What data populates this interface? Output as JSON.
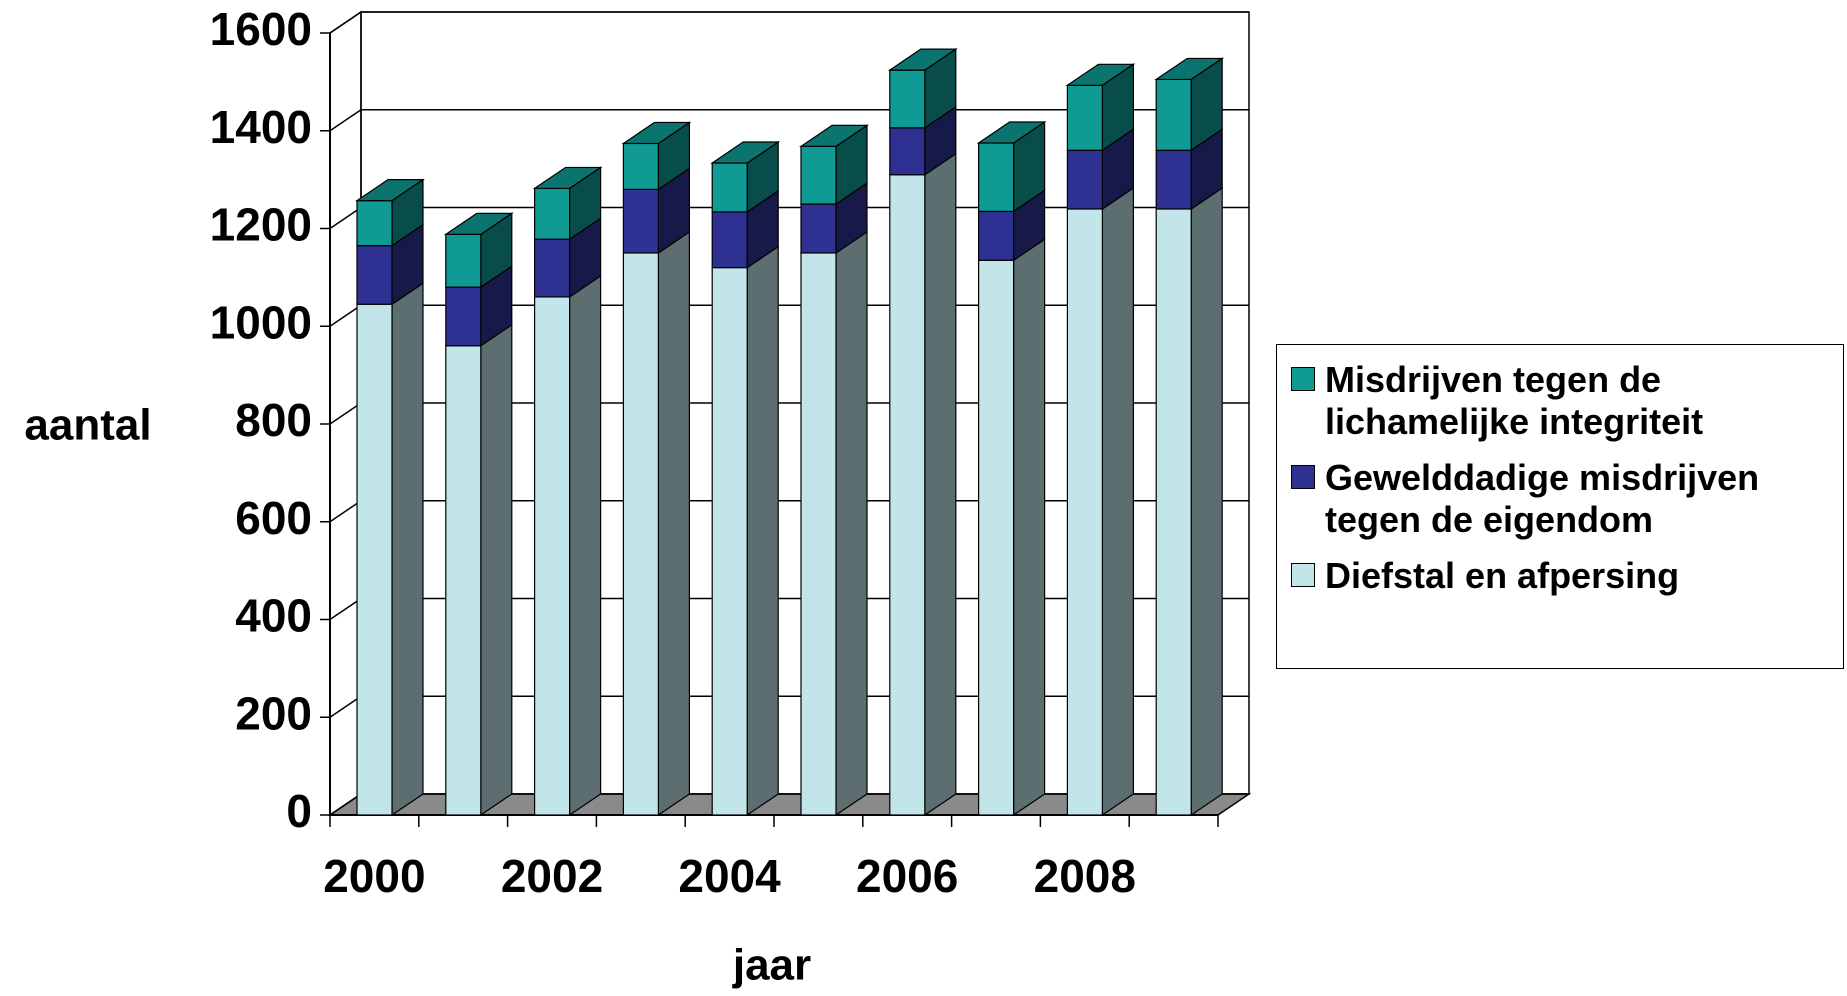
{
  "chart_data": {
    "type": "bar3d_stacked",
    "x_label": "jaar",
    "y_label": "aantal",
    "categories": [
      "2000",
      null,
      "2002",
      null,
      "2004",
      null,
      "2006",
      null,
      "2008",
      null
    ],
    "series": [
      {
        "name": "Diefstal en afpersing",
        "color": "#c2e5ea",
        "values": [
          1045,
          960,
          1060,
          1150,
          1120,
          1150,
          1310,
          1135,
          1240,
          1240
        ]
      },
      {
        "name": "Gewelddadige misdrijven tegen de eigendom",
        "color": "#2e3192",
        "values": [
          120,
          120,
          118,
          130,
          114,
          100,
          96,
          100,
          120,
          120
        ]
      },
      {
        "name": "Misdrijven tegen de lichamelijke integriteit",
        "color": "#0f9a94",
        "values": [
          92,
          108,
          104,
          94,
          100,
          118,
          118,
          140,
          133,
          145
        ]
      }
    ],
    "ylim": [
      0,
      1600
    ],
    "yticks": [
      0,
      200,
      400,
      600,
      800,
      1000,
      1200,
      1400,
      1600
    ],
    "grid": true
  }
}
